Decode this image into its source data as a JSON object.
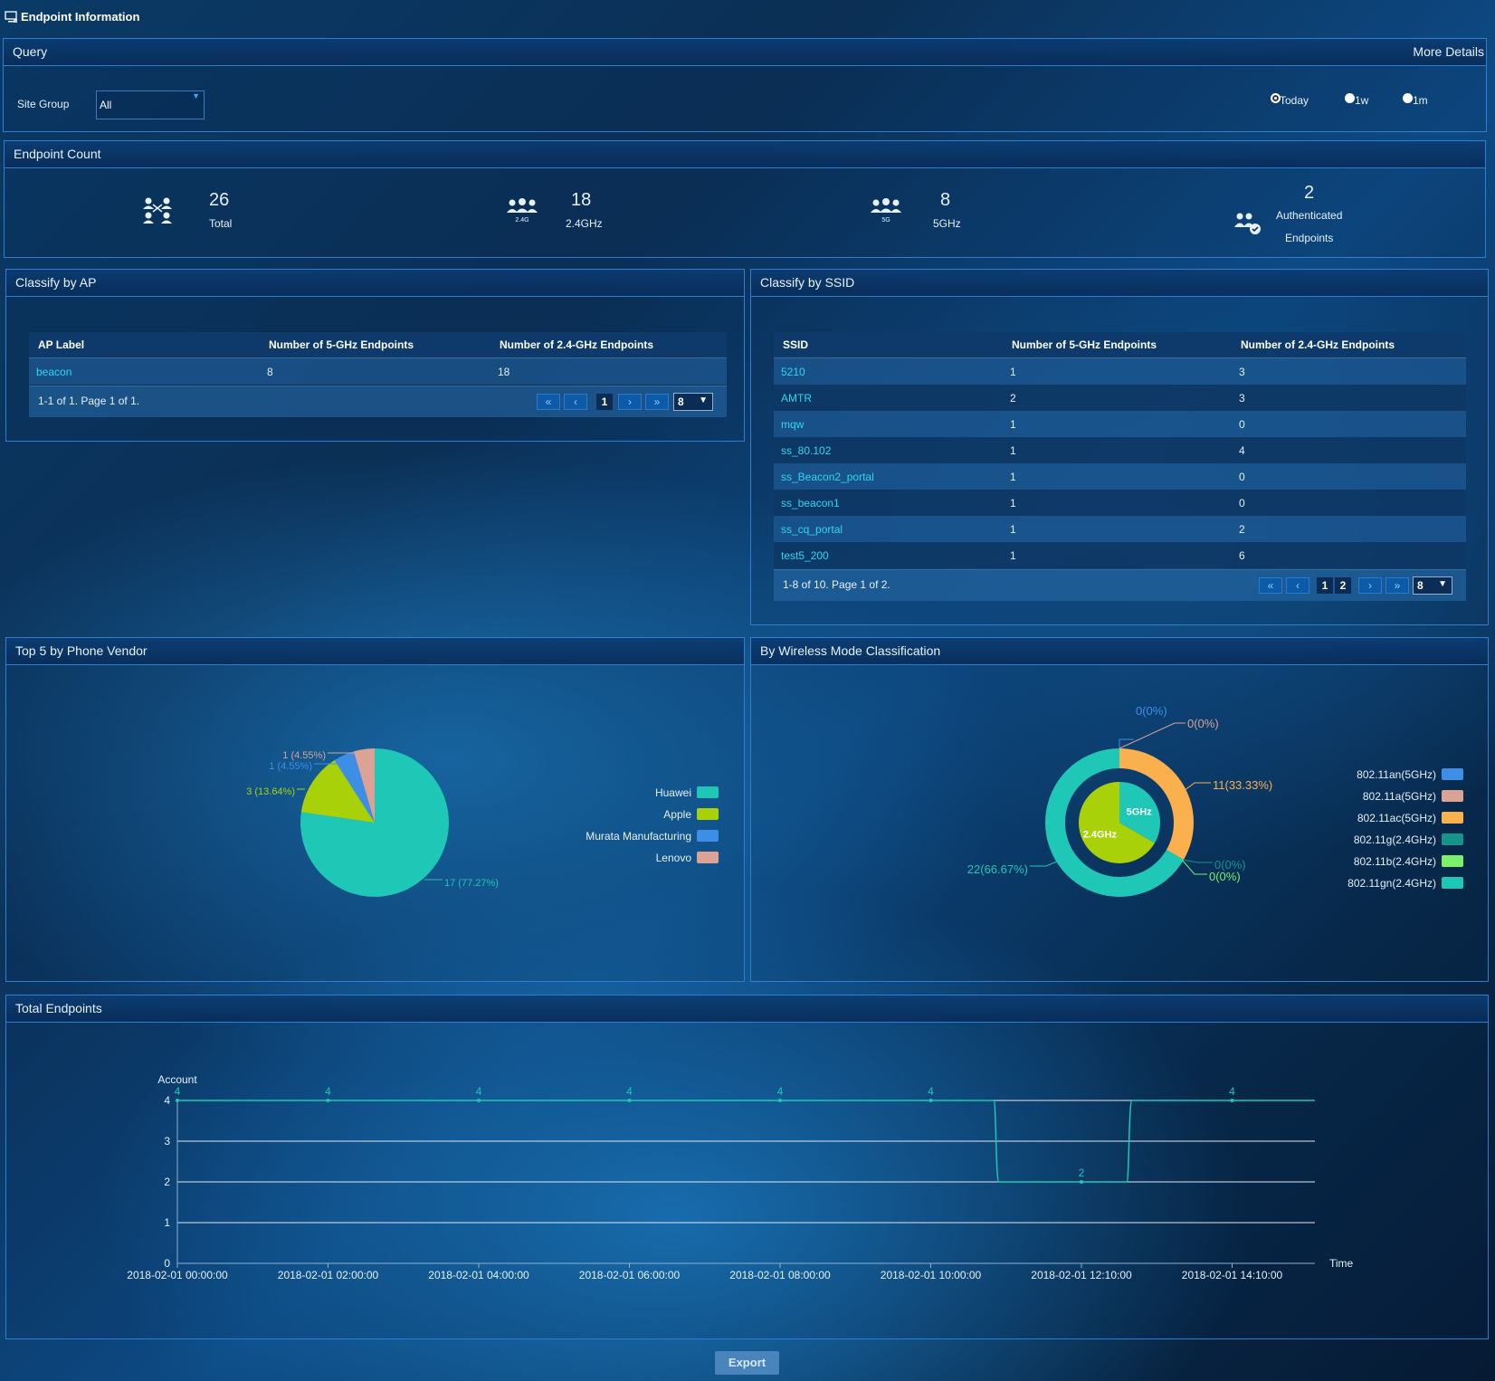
{
  "page": {
    "title": "Endpoint Information"
  },
  "query": {
    "title": "Query",
    "more_details": "More Details",
    "site_group_label": "Site Group",
    "site_group_value": "All",
    "radios": [
      {
        "label": "Today",
        "checked": true
      },
      {
        "label": "1w",
        "checked": false
      },
      {
        "label": "1m",
        "checked": false
      }
    ]
  },
  "endpoint_count": {
    "title": "Endpoint Count",
    "stats": [
      {
        "value": "26",
        "label": "Total",
        "icon": "network-users-icon"
      },
      {
        "value": "18",
        "label": "2.4GHz",
        "icon": "users-2.4g-icon",
        "icon_caption": "2.4G"
      },
      {
        "value": "8",
        "label": "5GHz",
        "icon": "users-5g-icon",
        "icon_caption": "5G"
      },
      {
        "value": "2",
        "label_line1": "Authenticated",
        "label_line2": "Endpoints",
        "icon": "users-check-icon"
      }
    ]
  },
  "classify_ap": {
    "title": "Classify by AP",
    "columns": [
      "AP Label",
      "Number of 5-GHz Endpoints",
      "Number of 2.4-GHz Endpoints"
    ],
    "rows": [
      [
        "beacon",
        "8",
        "18"
      ]
    ],
    "pager_info": "1-1 of 1. Page 1 of 1.",
    "pages": [
      "1"
    ],
    "page_size": "8"
  },
  "classify_ssid": {
    "title": "Classify by SSID",
    "columns": [
      "SSID",
      "Number of 5-GHz Endpoints",
      "Number of 2.4-GHz Endpoints"
    ],
    "rows": [
      [
        "5210",
        "1",
        "3"
      ],
      [
        "AMTR",
        "2",
        "3"
      ],
      [
        "mqw",
        "1",
        "0"
      ],
      [
        "ss_80.102",
        "1",
        "4"
      ],
      [
        "ss_Beacon2_portal",
        "1",
        "0"
      ],
      [
        "ss_beacon1",
        "1",
        "0"
      ],
      [
        "ss_cq_portal",
        "1",
        "2"
      ],
      [
        "test5_200",
        "1",
        "6"
      ]
    ],
    "pager_info": "1-8 of 10. Page 1 of 2.",
    "pages": [
      "1",
      "2"
    ],
    "page_size": "8"
  },
  "vendor_panel": {
    "title": "Top 5 by Phone Vendor"
  },
  "wireless_panel": {
    "title": "By Wireless Mode Classification"
  },
  "total_panel": {
    "title": "Total Endpoints"
  },
  "export_label": "Export",
  "chart_data": [
    {
      "type": "pie",
      "title": "Top 5 by Phone Vendor",
      "slices": [
        {
          "name": "Huawei",
          "value": 17,
          "label": "17 (77.27%)",
          "color": "#1fc7b6"
        },
        {
          "name": "Apple",
          "value": 3,
          "label": "3 (13.64%)",
          "color": "#a9d10a"
        },
        {
          "name": "Murata Manufacturing",
          "value": 1,
          "label": "1 (4.55%)",
          "color": "#3d8fe6"
        },
        {
          "name": "Lenovo",
          "value": 1,
          "label": "1 (4.55%)",
          "color": "#dba295"
        }
      ],
      "legend": "right"
    },
    {
      "type": "pie",
      "title": "By Wireless Mode Classification",
      "inner": [
        {
          "name": "5GHz",
          "value": 11,
          "color": "#1fc7b6"
        },
        {
          "name": "2.4GHz",
          "value": 22,
          "color": "#a9d10a"
        }
      ],
      "outer": [
        {
          "name": "802.11an(5GHz)",
          "value": 0,
          "label": "0(0%)",
          "color": "#3d8fe6"
        },
        {
          "name": "802.11a(5GHz)",
          "value": 0,
          "label": "0(0%)",
          "color": "#dba295"
        },
        {
          "name": "802.11ac(5GHz)",
          "value": 11,
          "label": "11(33.33%)",
          "color": "#fbb04e"
        },
        {
          "name": "802.11g(2.4GHz)",
          "value": 0,
          "label": "0(0%)",
          "color": "#14948a"
        },
        {
          "name": "802.11b(2.4GHz)",
          "value": 0,
          "label": "0(0%)",
          "color": "#7cf06a"
        },
        {
          "name": "802.11gn(2.4GHz)",
          "value": 22,
          "label": "22(66.67%)",
          "color": "#1fc7b6"
        }
      ],
      "legend": "right"
    },
    {
      "type": "line",
      "title": "Total Endpoints",
      "ylabel": "Account",
      "xlabel": "Time",
      "ylim": [
        0,
        4
      ],
      "yticks": [
        "0",
        "1",
        "2",
        "3",
        "4"
      ],
      "xticks": [
        "2018-02-01 00:00:00",
        "2018-02-01 02:00:00",
        "2018-02-01 04:00:00",
        "2018-02-01 06:00:00",
        "2018-02-01 08:00:00",
        "2018-02-01 10:00:00",
        "2018-02-01 12:10:00",
        "2018-02-01 14:10:00"
      ],
      "series": [
        {
          "values": [
            4,
            4,
            4,
            4,
            4,
            4,
            2,
            4
          ],
          "labels": [
            "4",
            "4",
            "4",
            "4",
            "4",
            "4",
            "2",
            "4"
          ],
          "color": "#1fc7b6"
        }
      ],
      "grid": true
    }
  ]
}
